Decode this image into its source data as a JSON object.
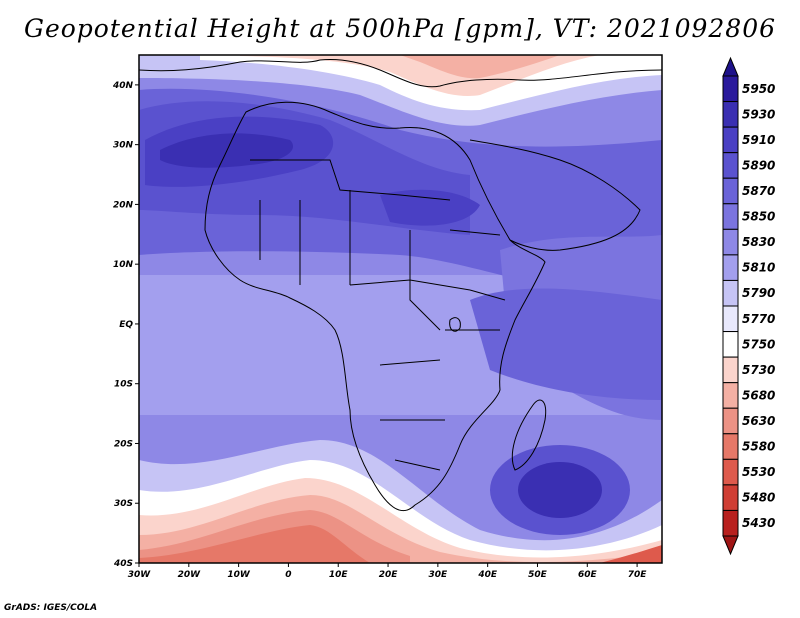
{
  "title": "Geopotential Height at 500hPa [gpm], VT: 2021092806",
  "credit": "GrADS: IGES/COLA",
  "map": {
    "lat_labels": [
      "40N",
      "30N",
      "20N",
      "10N",
      "EQ",
      "10S",
      "20S",
      "30S",
      "40S"
    ],
    "lon_labels": [
      "30W",
      "20W",
      "10W",
      "0",
      "10E",
      "20E",
      "30E",
      "40E",
      "50E",
      "60E",
      "70E"
    ],
    "region": "Africa and surrounding oceans",
    "lon_range": [
      -30,
      75
    ],
    "lat_range": [
      -40,
      45
    ]
  },
  "colorbar": {
    "levels": [
      "5950",
      "5930",
      "5910",
      "5890",
      "5870",
      "5850",
      "5830",
      "5810",
      "5790",
      "5770",
      "5750",
      "5730",
      "5680",
      "5630",
      "5580",
      "5530",
      "5480",
      "5430"
    ],
    "colors": [
      "#2a1a9c",
      "#3a2fb2",
      "#4a40c4",
      "#5a52cf",
      "#6a63d8",
      "#7b74df",
      "#8e88e6",
      "#a39fee",
      "#c6c4f5",
      "#e8e8fc",
      "#ffffff",
      "#fbd4cc",
      "#f4b0a4",
      "#ec9285",
      "#e67868",
      "#de5a4c",
      "#cf3e34",
      "#b8201e"
    ]
  },
  "chart_data": {
    "type": "heatmap",
    "title": "Geopotential Height at 500hPa [gpm], VT: 2021092806",
    "variable": "Geopotential Height at 500hPa",
    "units": "gpm",
    "valid_time": "2021092806",
    "x_range": [
      -30,
      75
    ],
    "y_range": [
      -40,
      45
    ],
    "contour_levels": [
      5430,
      5480,
      5530,
      5580,
      5630,
      5680,
      5730,
      5750,
      5770,
      5790,
      5810,
      5830,
      5850,
      5870,
      5890,
      5910,
      5930,
      5950
    ],
    "features": [
      {
        "name": "high over northwest Africa",
        "approx_lon": -15,
        "approx_lat": 27,
        "value": 5910
      },
      {
        "name": "high over Sudan",
        "approx_lon": 28,
        "approx_lat": 20,
        "value": 5890
      },
      {
        "name": "high south of Madagascar",
        "approx_lon": 55,
        "approx_lat": -27,
        "value": 5890
      },
      {
        "name": "trough off southwest Africa",
        "approx_lon": 12,
        "approx_lat": -35,
        "value": 5680
      },
      {
        "name": "trough over the Mediterranean",
        "approx_lon": 15,
        "approx_lat": 45,
        "value": 5750
      }
    ]
  }
}
